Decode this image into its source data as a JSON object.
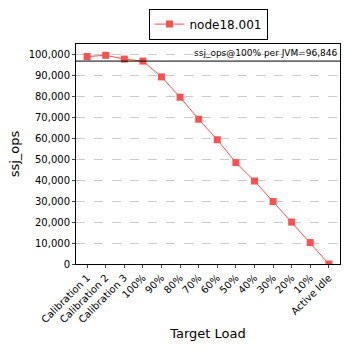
{
  "chart_data": {
    "type": "line",
    "x_label": "Target Load",
    "y_label": "ssj_ops",
    "categories": [
      "Calibration 1",
      "Calibration 2",
      "Calibration 3",
      "100%",
      "90%",
      "80%",
      "70%",
      "60%",
      "50%",
      "40%",
      "30%",
      "20%",
      "10%",
      "Active Idle"
    ],
    "series": [
      {
        "name": "node18.001",
        "color": "#ff5050",
        "marker": "square",
        "values": [
          99000,
          99600,
          97800,
          96846,
          89300,
          79600,
          69100,
          59300,
          48400,
          39600,
          29800,
          20000,
          10200,
          0
        ]
      }
    ],
    "ylim": [
      0,
      105000
    ],
    "yticks": [
      0,
      {
        "value": 10000,
        "label": "10,000"
      },
      {
        "value": 20000,
        "label": "20,000"
      },
      {
        "value": 30000,
        "label": "30,000"
      },
      {
        "value": 40000,
        "label": "40,000"
      },
      {
        "value": 50000,
        "label": "50,000"
      },
      {
        "value": 60000,
        "label": "60,000"
      },
      {
        "value": 70000,
        "label": "70,000"
      },
      {
        "value": 80000,
        "label": "80,000"
      },
      {
        "value": 90000,
        "label": "90,000"
      },
      {
        "value": 100000,
        "label": "100,000"
      }
    ],
    "annotations": [
      {
        "text": "ssj_ops@100% per JVM=96,846",
        "y": 96846
      }
    ],
    "grid": true,
    "legend": "top"
  }
}
